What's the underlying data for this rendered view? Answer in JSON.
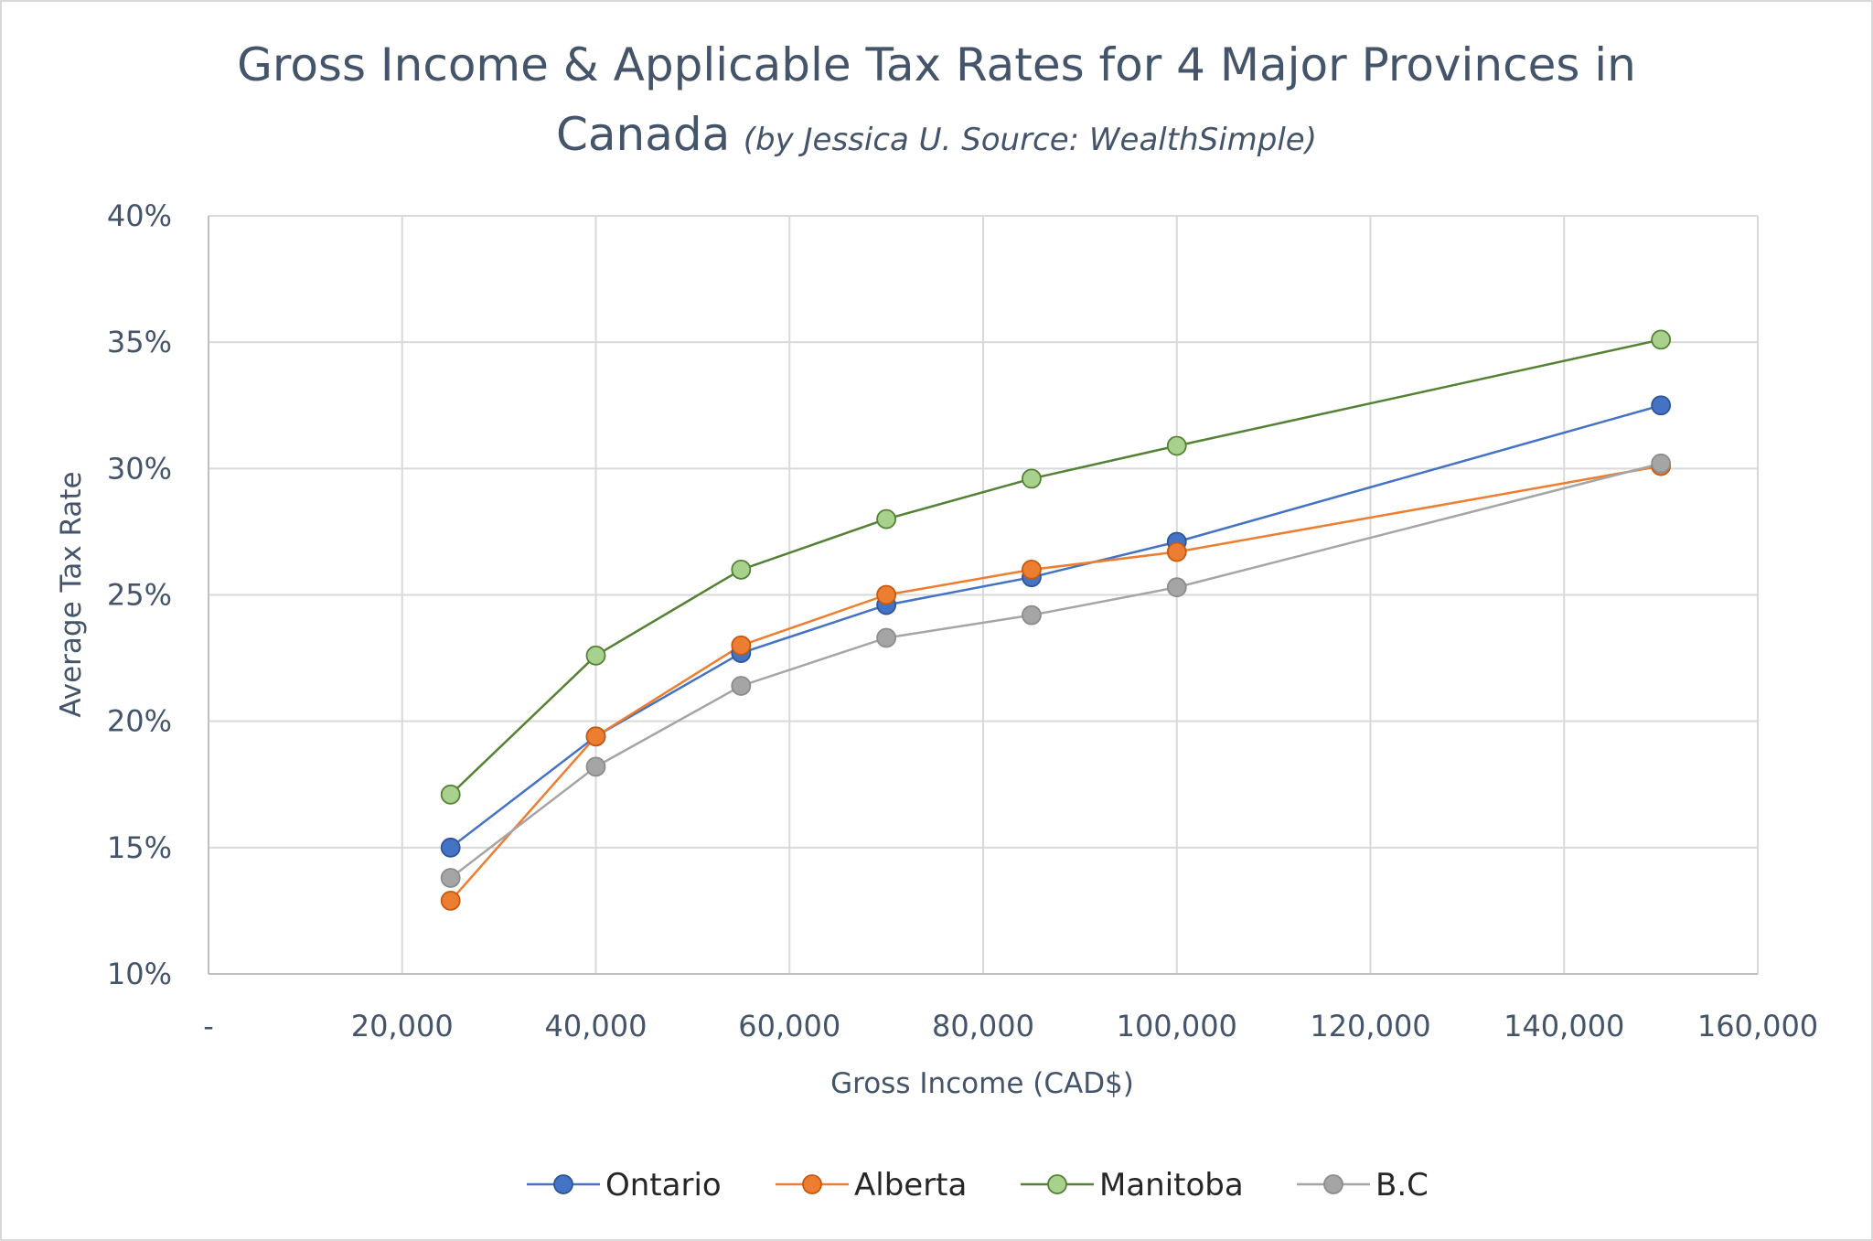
{
  "chart_data": {
    "type": "line",
    "title": "Gross Income & Applicable Tax Rates for 4 Major Provinces in",
    "title_line2": "Canada",
    "subtitle": "(by Jessica U. Source: WealthSimple)",
    "xlabel": "Gross Income (CAD$)",
    "ylabel": "Average Tax Rate",
    "xlim": [
      0,
      160000
    ],
    "ylim": [
      10,
      40
    ],
    "x_ticks": [
      {
        "value": 0,
        "label": "-"
      },
      {
        "value": 20000,
        "label": "20,000"
      },
      {
        "value": 40000,
        "label": "40,000"
      },
      {
        "value": 60000,
        "label": "60,000"
      },
      {
        "value": 80000,
        "label": "80,000"
      },
      {
        "value": 100000,
        "label": "100,000"
      },
      {
        "value": 120000,
        "label": "120,000"
      },
      {
        "value": 140000,
        "label": "140,000"
      },
      {
        "value": 160000,
        "label": "160,000"
      }
    ],
    "y_ticks": [
      {
        "value": 10,
        "label": "10%"
      },
      {
        "value": 15,
        "label": "15%"
      },
      {
        "value": 20,
        "label": "20%"
      },
      {
        "value": 25,
        "label": "25%"
      },
      {
        "value": 30,
        "label": "30%"
      },
      {
        "value": 35,
        "label": "35%"
      },
      {
        "value": 40,
        "label": "40%"
      }
    ],
    "grid": true,
    "legend_position": "bottom",
    "x": [
      25000,
      40000,
      55000,
      70000,
      85000,
      100000,
      150000
    ],
    "series": [
      {
        "name": "Ontario",
        "line_color": "#4472c4",
        "fill_color": "#4472c4",
        "edge_color": "#2f5597",
        "values": [
          15.0,
          19.4,
          22.7,
          24.6,
          25.7,
          27.1,
          32.5
        ]
      },
      {
        "name": "Alberta",
        "line_color": "#ed7d31",
        "fill_color": "#ed7d31",
        "edge_color": "#c55a11",
        "values": [
          12.9,
          19.4,
          23.0,
          25.0,
          26.0,
          26.7,
          30.1
        ]
      },
      {
        "name": "Manitoba",
        "line_color": "#548235",
        "fill_color": "#a9d18e",
        "edge_color": "#548235",
        "values": [
          17.1,
          22.6,
          26.0,
          28.0,
          29.6,
          30.9,
          35.1
        ]
      },
      {
        "name": "B.C",
        "line_color": "#a5a5a5",
        "fill_color": "#a5a5a5",
        "edge_color": "#8c8c8c",
        "values": [
          13.8,
          18.2,
          21.4,
          23.3,
          24.2,
          25.3,
          30.2
        ]
      }
    ]
  }
}
